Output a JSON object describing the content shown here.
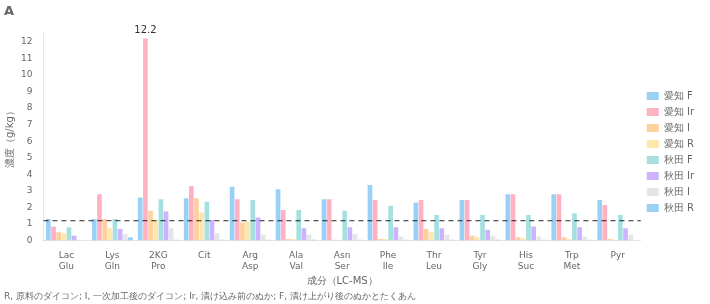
{
  "chart_data": {
    "type": "bar",
    "title": "A",
    "subtitle": "R, 原料のダイコン; I, 一次加工後のダイコン; Ir, 漬け込み前のぬか; F, 漬け上がり後のぬかとたくあん",
    "xlabel": "成分（LC-MS）",
    "ylabel": "濃度（g/kg）",
    "categories": [
      "Lac\nGlu",
      "Lys\nGln",
      "2KG\nPro",
      "Cit",
      "Arg\nAsp",
      "Ala\nVal",
      "Asn\nSer",
      "Phe\nIle",
      "Thr\nLeu",
      "Tyr\nGly",
      "His\nSuc",
      "Trp\nMet",
      "Pyr"
    ],
    "series": [
      {
        "name": "愛知 F",
        "values": [
          1.3,
          1.3,
          2.6,
          2.55,
          3.25,
          3.1,
          2.5,
          3.35,
          2.3,
          2.45,
          2.8,
          2.8,
          2.45
        ]
      },
      {
        "name": "愛知 Ir",
        "values": [
          0.85,
          2.8,
          12.2,
          3.3,
          2.5,
          1.85,
          2.5,
          2.45,
          2.45,
          2.45,
          2.8,
          2.8,
          2.15
        ]
      },
      {
        "name": "愛知 I",
        "values": [
          0.5,
          1.3,
          1.8,
          2.55,
          1.1,
          0.1,
          0.05,
          0.1,
          0.7,
          0.3,
          0.2,
          0.2,
          0.1
        ]
      },
      {
        "name": "愛知 R",
        "values": [
          0.45,
          0.75,
          1.25,
          1.7,
          1.15,
          0.1,
          0.05,
          0.1,
          0.5,
          0.2,
          0.15,
          0.1,
          0.05
        ]
      },
      {
        "name": "秋田 F",
        "values": [
          0.8,
          1.3,
          2.5,
          2.35,
          2.45,
          1.85,
          1.8,
          2.1,
          1.55,
          1.55,
          1.55,
          1.65,
          1.55
        ]
      },
      {
        "name": "秋田 Ir",
        "values": [
          0.3,
          0.7,
          1.75,
          1.25,
          1.4,
          0.75,
          0.8,
          0.8,
          0.75,
          0.65,
          0.85,
          0.8,
          0.75
        ]
      },
      {
        "name": "秋田 I",
        "values": [
          0.05,
          0.4,
          0.75,
          0.45,
          0.35,
          0.35,
          0.4,
          0.25,
          0.35,
          0.3,
          0.25,
          0.25,
          0.35
        ]
      },
      {
        "name": "秋田 R",
        "values": [
          0.0,
          0.2,
          0.05,
          0.05,
          0.05,
          0.05,
          0.05,
          0.05,
          0.05,
          0.05,
          0.05,
          0.05,
          0.0
        ]
      }
    ],
    "ylim": [
      0,
      12.5
    ],
    "yticks": [
      0,
      1,
      2,
      3,
      4,
      5,
      6,
      7,
      8,
      9,
      10,
      11,
      12
    ],
    "grid": false,
    "legend": "right",
    "annotations": [
      {
        "text": "12.2",
        "series": "愛知 Ir",
        "category": "2KG\nPro",
        "y": 12.2
      },
      {
        "y": 1.2,
        "line_style": "dashed"
      }
    ]
  }
}
